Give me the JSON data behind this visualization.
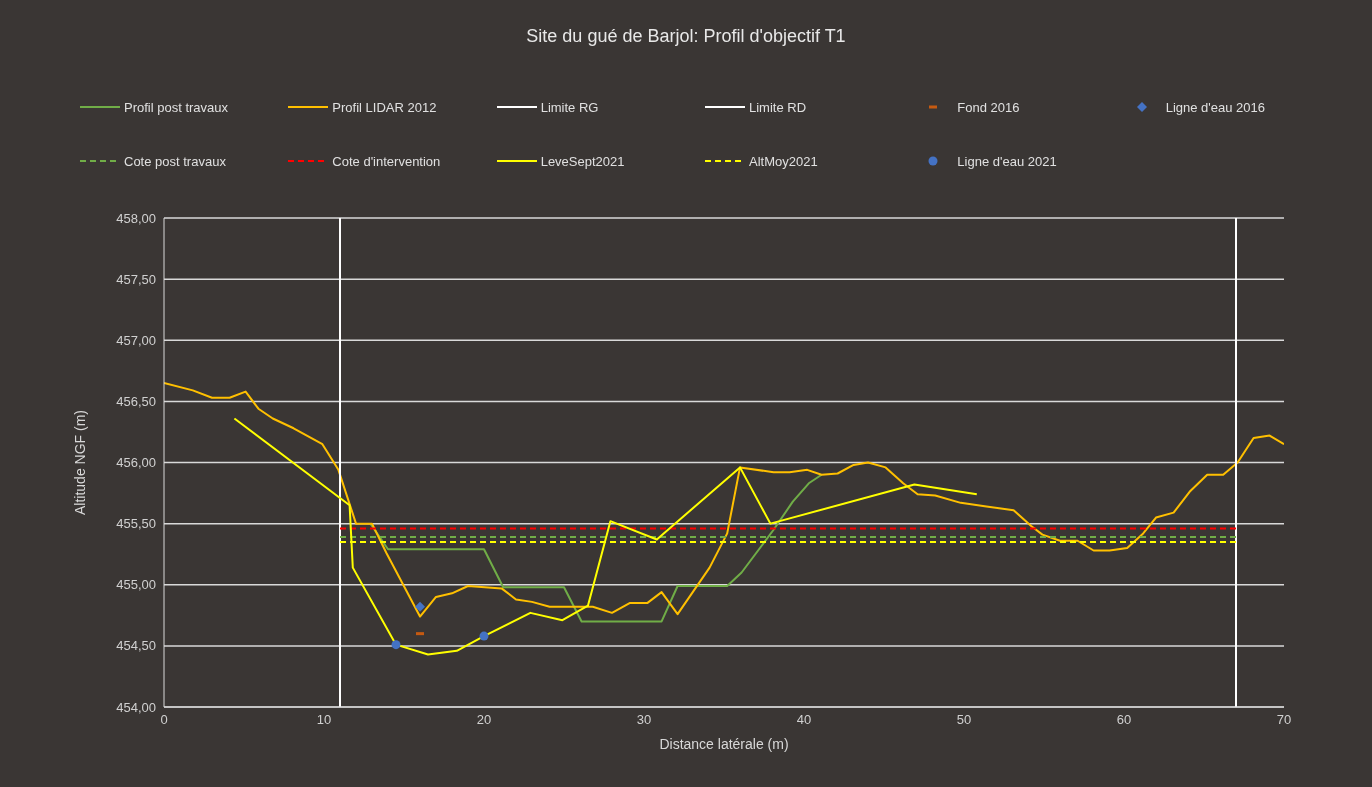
{
  "chart_data": {
    "type": "line",
    "title": "Site du gué de Barjol: Profil d'objectif T1",
    "xlabel": "Distance latérale (m)",
    "ylabel": "Altitude NGF (m)",
    "xlim": [
      0,
      70
    ],
    "xticks": [
      0,
      10,
      20,
      30,
      40,
      50,
      60,
      70
    ],
    "ylim": [
      454,
      458
    ],
    "yticks": [
      {
        "value": 454,
        "label": "454,00"
      },
      {
        "value": 454.5,
        "label": "454,50"
      },
      {
        "value": 455,
        "label": "455,00"
      },
      {
        "value": 455.5,
        "label": "455,50"
      },
      {
        "value": 456,
        "label": "456,00"
      },
      {
        "value": 456.5,
        "label": "456,50"
      },
      {
        "value": 457,
        "label": "457,00"
      },
      {
        "value": 457.5,
        "label": "457,50"
      },
      {
        "value": 458,
        "label": "458,00"
      }
    ],
    "grid": "y",
    "legend": "top",
    "series": [
      {
        "name": "Profil post travaux",
        "color": "#70ad47",
        "line_style": "solid",
        "x": [
          12.9,
          14,
          20,
          21.2,
          25,
          26.1,
          31.1,
          32.1,
          35.2,
          36.1,
          38.1,
          39.3,
          40.3,
          41.1
        ],
        "values": [
          455.5,
          455.29,
          455.29,
          454.98,
          454.98,
          454.7,
          454.7,
          454.99,
          454.99,
          455.1,
          455.45,
          455.68,
          455.83,
          455.9
        ]
      },
      {
        "name": "Profil LIDAR 2012",
        "color": "#ffc000",
        "line_style": "solid",
        "x": [
          0,
          1.8,
          3,
          4.1,
          5.1,
          5.9,
          6.8,
          8.1,
          9.9,
          10.9,
          12,
          13,
          13.9,
          16,
          17,
          18,
          19,
          21.1,
          22,
          23,
          24.1,
          26.8,
          28,
          29.1,
          30.2,
          31.1,
          32.1,
          34.1,
          35.2,
          36,
          38.1,
          39.1,
          40.2,
          41.1,
          42.1,
          43.1,
          44,
          45.1,
          46.2,
          47.1,
          48.2,
          49.8,
          51.4,
          53.1,
          54.2,
          54.9,
          56,
          57.1,
          58.1,
          59.1,
          60.2,
          61.2,
          62,
          63.1,
          64.1,
          65.2,
          66.2,
          67.1,
          68.1,
          69.1,
          70
        ],
        "values": [
          456.65,
          456.59,
          456.53,
          456.53,
          456.58,
          456.44,
          456.36,
          456.28,
          456.15,
          455.94,
          455.5,
          455.5,
          455.26,
          454.74,
          454.9,
          454.93,
          454.99,
          454.97,
          454.88,
          454.86,
          454.82,
          454.82,
          454.77,
          454.85,
          454.85,
          454.94,
          454.76,
          455.14,
          455.42,
          455.96,
          455.92,
          455.92,
          455.94,
          455.9,
          455.91,
          455.98,
          456,
          455.96,
          455.83,
          455.74,
          455.73,
          455.67,
          455.64,
          455.61,
          455.48,
          455.41,
          455.36,
          455.36,
          455.28,
          455.28,
          455.3,
          455.42,
          455.55,
          455.59,
          455.76,
          455.9,
          455.9,
          456,
          456.2,
          456.22,
          456.15
        ]
      },
      {
        "name": "Limite RG",
        "color": "#ffffff",
        "line_style": "solid",
        "x": [
          11,
          11
        ],
        "values": [
          454,
          458
        ]
      },
      {
        "name": "Limite RD",
        "color": "#ffffff",
        "line_style": "solid",
        "x": [
          67,
          67
        ],
        "values": [
          454,
          458
        ]
      },
      {
        "name": "Fond 2016",
        "type": "scatter",
        "marker": "square",
        "color": "#c55a11",
        "x": [
          16
        ],
        "values": [
          454.6
        ]
      },
      {
        "name": "Ligne d'eau 2016",
        "type": "scatter",
        "marker": "diamond",
        "color": "#4472c4",
        "x": [
          16
        ],
        "values": [
          454.82
        ]
      },
      {
        "name": "Cote post travaux",
        "color": "#70ad47",
        "line_style": "dashed",
        "x": [
          11,
          67
        ],
        "values": [
          455.39,
          455.39
        ]
      },
      {
        "name": "Cote d'intervention",
        "color": "#ff0000",
        "line_style": "dashed",
        "x": [
          11,
          67
        ],
        "values": [
          455.46,
          455.46
        ]
      },
      {
        "name": "LeveSept2021",
        "color": "#ffff00",
        "line_style": "solid",
        "x": [
          4.4,
          11,
          11.6,
          11.8,
          14.5,
          16.5,
          18.3,
          20,
          22.9,
          24.9,
          26.5,
          27.9,
          30.8,
          36,
          37.9,
          46.9,
          50.8
        ],
        "values": [
          456.36,
          455.71,
          455.65,
          455.14,
          454.51,
          454.43,
          454.46,
          454.58,
          454.77,
          454.71,
          454.83,
          455.52,
          455.37,
          455.96,
          455.5,
          455.82,
          455.74
        ]
      },
      {
        "name": "AltMoy2021",
        "color": "#ffff00",
        "line_style": "dashed",
        "x": [
          11,
          67
        ],
        "values": [
          455.35,
          455.35
        ]
      },
      {
        "name": "Ligne d'eau 2021",
        "type": "scatter",
        "marker": "circle",
        "color": "#4472c4",
        "x": [
          14.5,
          20
        ],
        "values": [
          454.51,
          454.58
        ]
      }
    ]
  }
}
